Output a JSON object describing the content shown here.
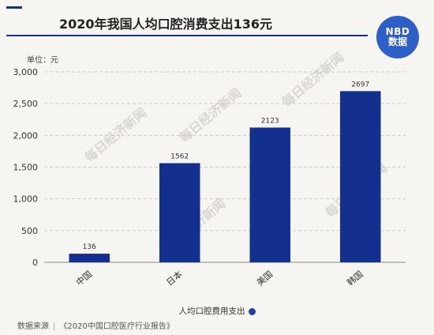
{
  "header": {
    "title": "2020年我国人均口腔消费支出136元"
  },
  "logo": {
    "line1": "NBD",
    "line2": "数据"
  },
  "unit_label": "单位：元",
  "watermark": "每日经济新闻",
  "source": {
    "label": "数据来源",
    "text": "《2020中国口腔医疗行业报告》"
  },
  "colors": {
    "bar": "#13308f",
    "accent": "#13308f",
    "background": "#f7f5f2"
  },
  "chart_data": {
    "type": "bar",
    "title": "2020年我国人均口腔消费支出136元",
    "categories": [
      "中国",
      "日本",
      "美国",
      "韩国"
    ],
    "series": [
      {
        "name": "人均口腔费用支出",
        "values": [
          136,
          1562,
          2123,
          2697
        ]
      }
    ],
    "ylim": [
      0,
      3000
    ],
    "yticks": [
      0,
      500,
      1000,
      1500,
      2000,
      2500,
      3000
    ],
    "ytick_labels": [
      "0",
      "500",
      "1,000",
      "1,500",
      "2,000",
      "2,500",
      "3,000"
    ],
    "data_labels": [
      "136",
      "1562",
      "2123",
      "2697"
    ],
    "grid": "horizontal-dashed",
    "legend": "bottom-center"
  }
}
